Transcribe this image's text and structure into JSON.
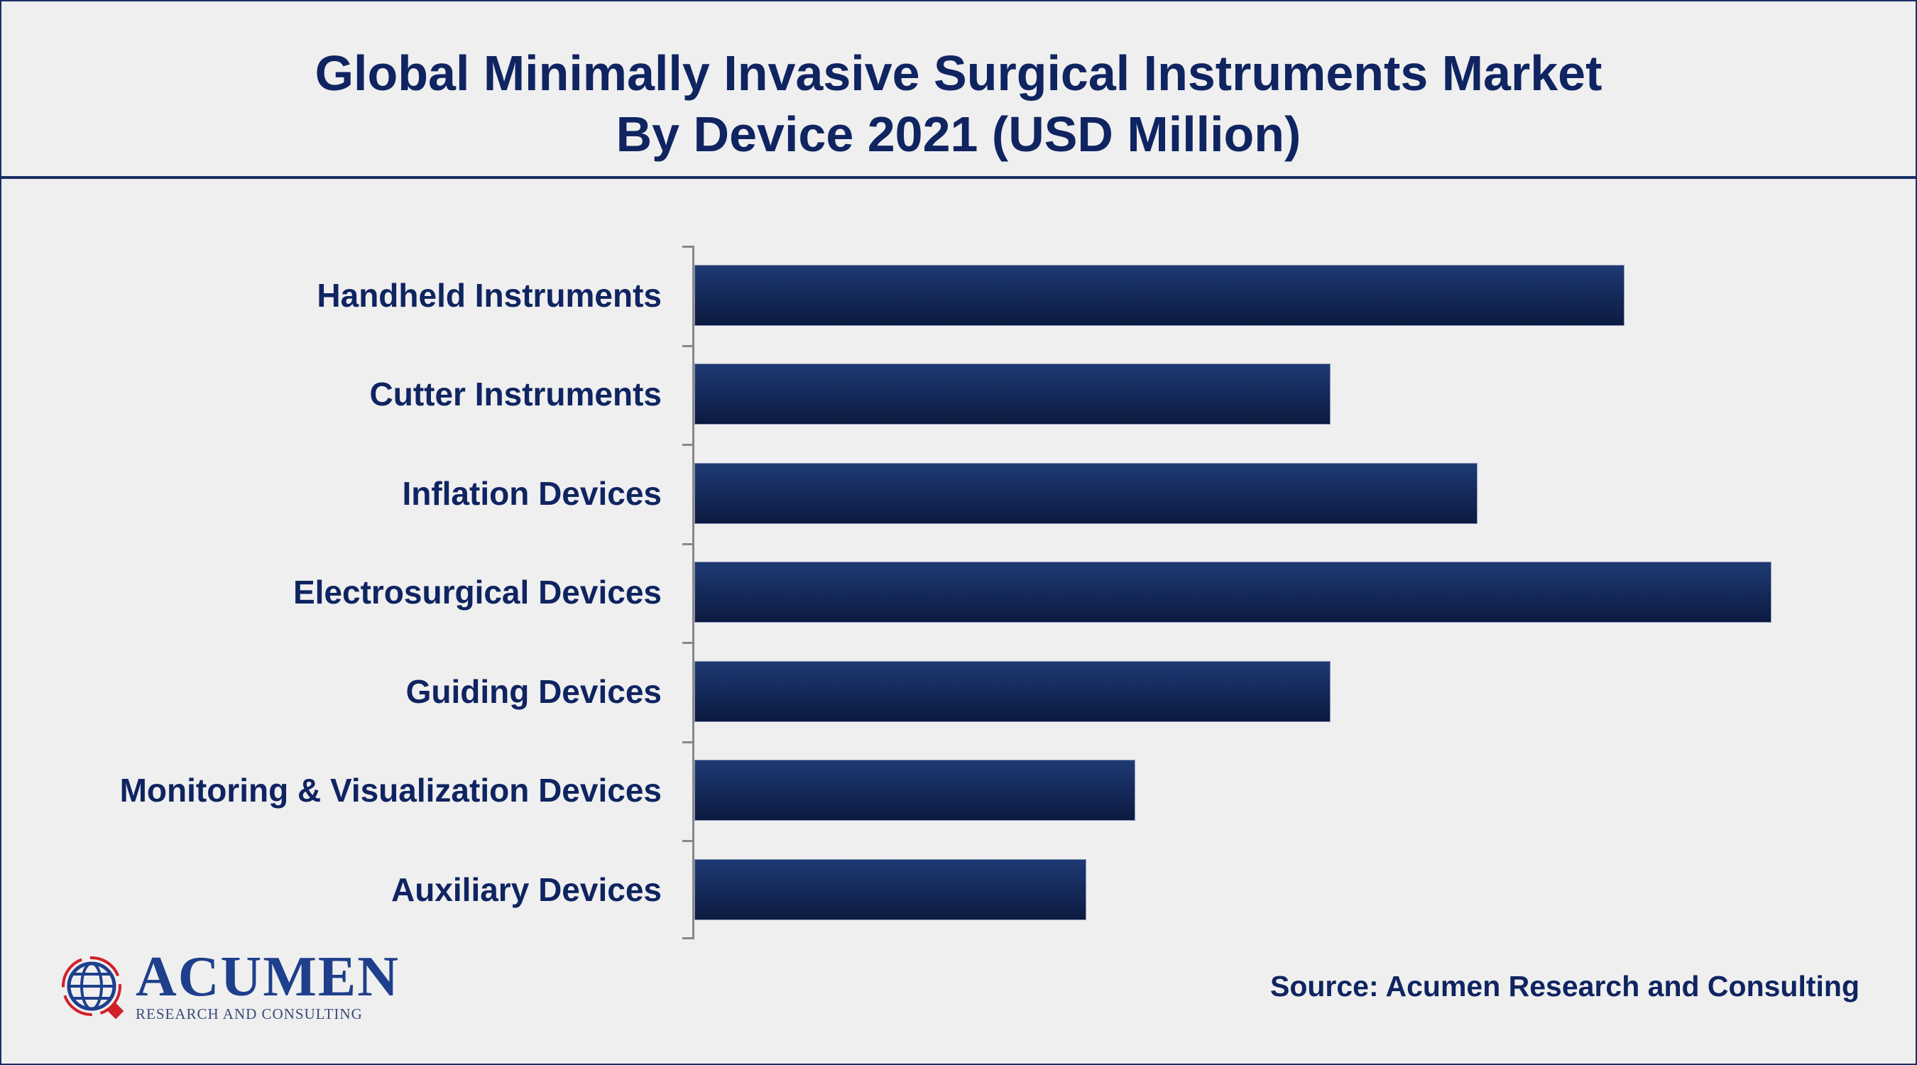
{
  "chart_data": {
    "type": "bar",
    "orientation": "horizontal",
    "title": "Global Minimally Invasive Surgical Instruments Market",
    "subtitle": "By Device 2021 (USD Million)",
    "categories": [
      "Handheld Instruments",
      "Cutter Instruments",
      "Inflation Devices",
      "Electrosurgical Devices",
      "Guiding Devices",
      "Monitoring & Visualization Devices",
      "Auxiliary Devices"
    ],
    "values": [
      19,
      13,
      16,
      22,
      13,
      9,
      8
    ],
    "value_note": "relative bar lengths (no axis values shown)",
    "xlabel": "",
    "ylabel": "",
    "xlim": [
      0,
      22
    ],
    "grid": false,
    "bar_color": "#1a2f66"
  },
  "source": "Source: Acumen Research and Consulting",
  "logo": {
    "name": "ACUMEN",
    "tagline": "RESEARCH AND CONSULTING"
  }
}
